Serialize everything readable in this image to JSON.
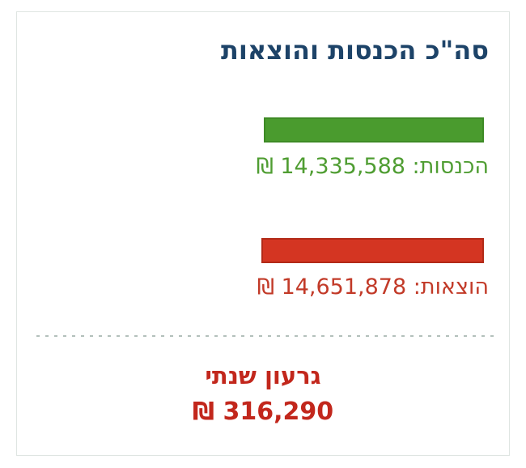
{
  "card": {
    "title": "סה\"כ הכנסות והוצאות",
    "title_color": "#1d4368",
    "border_color": "#dfe5e2",
    "divider_color": "#b3c0bb",
    "income": {
      "label": "הכנסות",
      "value": "14,335,588",
      "currency": "₪",
      "text": "הכנסות: 14,335,588 ₪",
      "bar_color": "#4a9b2e",
      "bar_border_color": "#3e8a25",
      "text_color": "#4f9d32"
    },
    "expenses": {
      "label": "הוצאות",
      "value": "14,651,878",
      "currency": "₪",
      "text": "הוצאות: 14,651,878 ₪",
      "bar_color": "#d43522",
      "bar_border_color": "#b22a18",
      "text_color": "#c23a28"
    },
    "deficit": {
      "label": "גרעון שנתי",
      "value": "316,290",
      "currency": "₪",
      "value_text": "316,290 ₪",
      "color": "#c2271c"
    }
  },
  "chart_data": {
    "type": "bar",
    "orientation": "horizontal",
    "title": "סה\"כ הכנסות והוצאות",
    "categories": [
      "הכנסות",
      "הוצאות"
    ],
    "values": [
      14335588,
      14651878
    ],
    "colors": [
      "#4a9b2e",
      "#d43522"
    ],
    "currency": "₪",
    "legend_position": "none",
    "grid": false,
    "annotations": [
      {
        "label": "גרעון שנתי",
        "value": 316290,
        "color": "#c2271c"
      }
    ]
  }
}
